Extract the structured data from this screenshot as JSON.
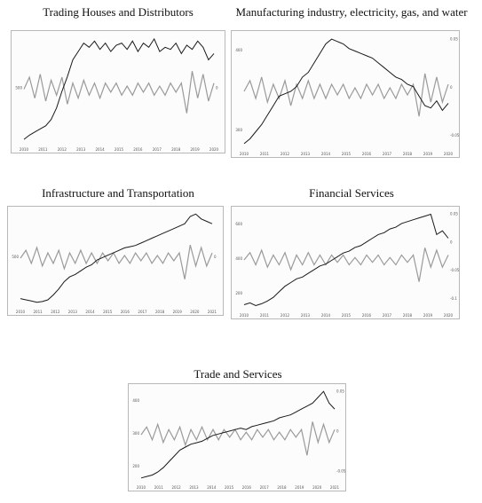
{
  "colors": {
    "price": "#1a1a1a",
    "returns": "#9a9a9a",
    "frame": "#b8b8b8"
  },
  "chart_data": [
    {
      "type": "line",
      "title": "Trading Houses and Distributors",
      "x_tick_labels": [
        "2010",
        "2011",
        "2012",
        "2013",
        "2014",
        "2015",
        "2016",
        "2017",
        "2018",
        "2019",
        "2020"
      ],
      "left_tick_labels": [
        "500"
      ],
      "right_tick_labels": [
        "0"
      ],
      "series": [
        {
          "values": [
            180,
            200,
            215,
            230,
            245,
            275,
            330,
            410,
            480,
            560,
            600,
            640,
            620,
            650,
            610,
            640,
            600,
            630,
            640,
            610,
            650,
            600,
            640,
            620,
            660,
            600,
            620,
            610,
            640,
            590,
            630,
            610,
            650,
            620,
            560,
            590
          ]
        },
        {
          "values": [
            0,
            0.04,
            -0.03,
            0.05,
            -0.04,
            0.03,
            -0.02,
            0.04,
            -0.05,
            0.02,
            -0.03,
            0.03,
            -0.02,
            0.02,
            -0.03,
            0.02,
            -0.01,
            0.02,
            -0.02,
            0.01,
            -0.02,
            0.02,
            -0.01,
            0.02,
            -0.02,
            0.01,
            -0.02,
            0.02,
            -0.01,
            0.02,
            -0.08,
            0.06,
            -0.03,
            0.05,
            -0.04,
            0.02
          ]
        }
      ]
    },
    {
      "type": "line",
      "title": "Manufacturing industry, electricity, gas, and water",
      "x_tick_labels": [
        "2010",
        "2011",
        "2012",
        "2013",
        "2014",
        "2015",
        "2016",
        "2017",
        "2018",
        "2019",
        "2020"
      ],
      "left_tick_labels": [
        "400",
        "300"
      ],
      "right_tick_labels": [
        "0.05",
        "0",
        "-0.05"
      ],
      "series": [
        {
          "values": [
            260,
            270,
            285,
            300,
            320,
            340,
            360,
            365,
            370,
            380,
            400,
            410,
            430,
            450,
            470,
            480,
            475,
            470,
            460,
            455,
            450,
            445,
            440,
            430,
            420,
            410,
            400,
            395,
            385,
            380,
            360,
            340,
            335,
            350,
            330,
            345
          ]
        },
        {
          "values": [
            0,
            0.03,
            -0.02,
            0.04,
            -0.03,
            0.02,
            -0.02,
            0.03,
            -0.04,
            0.02,
            -0.02,
            0.03,
            -0.02,
            0.02,
            -0.02,
            0.02,
            -0.01,
            0.02,
            -0.02,
            0.01,
            -0.02,
            0.02,
            -0.01,
            0.02,
            -0.02,
            0.01,
            -0.02,
            0.02,
            -0.01,
            0.02,
            -0.07,
            0.05,
            -0.03,
            0.04,
            -0.03,
            0.02
          ]
        }
      ]
    },
    {
      "type": "line",
      "title": "Infrastructure and Transportation",
      "x_tick_labels": [
        "2010",
        "2011",
        "2012",
        "2013",
        "2014",
        "2015",
        "2016",
        "2017",
        "2018",
        "2019",
        "2020",
        "2021"
      ],
      "left_tick_labels": [
        "500"
      ],
      "right_tick_labels": [
        "0"
      ],
      "series": [
        {
          "values": [
            250,
            245,
            240,
            235,
            238,
            245,
            265,
            290,
            320,
            340,
            350,
            365,
            380,
            390,
            410,
            420,
            430,
            440,
            450,
            460,
            465,
            470,
            480,
            490,
            500,
            510,
            520,
            530,
            540,
            550,
            560,
            590,
            600,
            580,
            570,
            560
          ]
        },
        {
          "values": [
            0,
            0.03,
            -0.02,
            0.04,
            -0.03,
            0.02,
            -0.02,
            0.03,
            -0.04,
            0.02,
            -0.02,
            0.03,
            -0.02,
            0.02,
            -0.02,
            0.02,
            -0.01,
            0.02,
            -0.02,
            0.01,
            -0.02,
            0.02,
            -0.01,
            0.02,
            -0.02,
            0.01,
            -0.02,
            0.02,
            -0.01,
            0.02,
            -0.08,
            0.05,
            -0.03,
            0.04,
            -0.03,
            0.02
          ]
        }
      ]
    },
    {
      "type": "line",
      "title": "Financial Services",
      "x_tick_labels": [
        "2010",
        "2011",
        "2012",
        "2013",
        "2014",
        "2015",
        "2016",
        "2017",
        "2018",
        "2019",
        "2020"
      ],
      "left_tick_labels": [
        "600",
        "400",
        "200"
      ],
      "right_tick_labels": [
        "0.05",
        "0",
        "-0.05",
        "-0.1"
      ],
      "series": [
        {
          "values": [
            180,
            190,
            175,
            185,
            200,
            220,
            250,
            280,
            300,
            320,
            330,
            350,
            370,
            390,
            400,
            420,
            440,
            460,
            470,
            490,
            500,
            520,
            540,
            560,
            570,
            590,
            600,
            620,
            630,
            640,
            650,
            660,
            670,
            560,
            580,
            540
          ]
        },
        {
          "values": [
            0,
            0.03,
            -0.02,
            0.04,
            -0.03,
            0.02,
            -0.02,
            0.03,
            -0.04,
            0.02,
            -0.02,
            0.03,
            -0.02,
            0.02,
            -0.02,
            0.02,
            -0.01,
            0.02,
            -0.02,
            0.01,
            -0.02,
            0.02,
            -0.01,
            0.02,
            -0.02,
            0.01,
            -0.02,
            0.02,
            -0.01,
            0.02,
            -0.09,
            0.05,
            -0.03,
            0.04,
            -0.03,
            0.02
          ]
        }
      ]
    },
    {
      "type": "line",
      "title": "Trade and Services",
      "x_tick_labels": [
        "2010",
        "2011",
        "2012",
        "2013",
        "2014",
        "2015",
        "2016",
        "2017",
        "2018",
        "2019",
        "2020",
        "2021"
      ],
      "left_tick_labels": [
        "400",
        "300",
        "200"
      ],
      "right_tick_labels": [
        "0.05",
        "0",
        "-0.05"
      ],
      "series": [
        {
          "values": [
            185,
            190,
            195,
            205,
            220,
            240,
            260,
            280,
            290,
            300,
            305,
            310,
            320,
            330,
            335,
            340,
            345,
            350,
            355,
            350,
            360,
            365,
            370,
            375,
            380,
            390,
            395,
            400,
            410,
            420,
            430,
            440,
            460,
            480,
            440,
            420
          ]
        },
        {
          "values": [
            0,
            0.03,
            -0.02,
            0.04,
            -0.03,
            0.02,
            -0.02,
            0.03,
            -0.04,
            0.02,
            -0.02,
            0.03,
            -0.02,
            0.02,
            -0.02,
            0.02,
            -0.01,
            0.02,
            -0.02,
            0.01,
            -0.02,
            0.02,
            -0.01,
            0.02,
            -0.02,
            0.01,
            -0.02,
            0.02,
            -0.01,
            0.02,
            -0.08,
            0.05,
            -0.03,
            0.04,
            -0.03,
            0.02
          ]
        }
      ]
    }
  ]
}
